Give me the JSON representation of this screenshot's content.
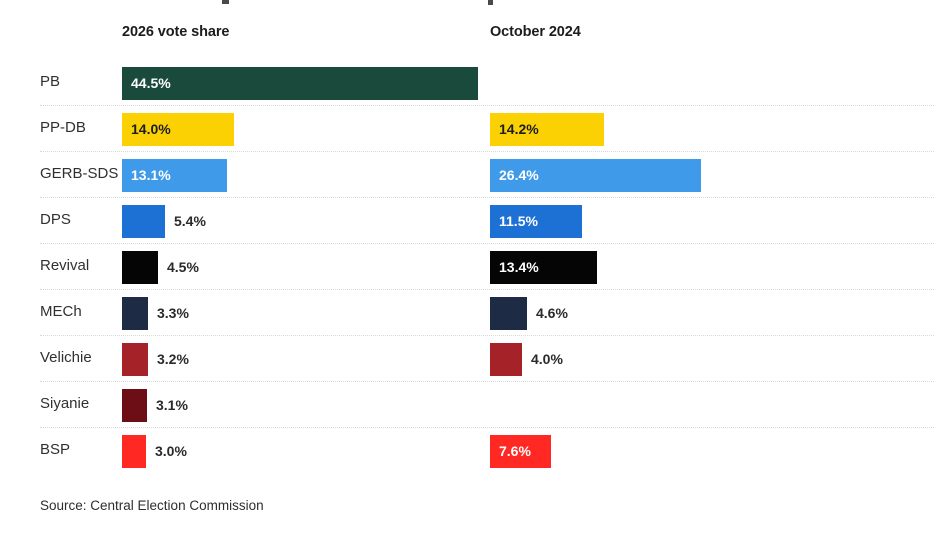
{
  "headers": {
    "col2026": "2026 vote share",
    "col2024": "October 2024"
  },
  "source": "Source: Central Election Commission",
  "chart_data": {
    "type": "bar",
    "orientation": "horizontal",
    "title": "",
    "xlabel": "",
    "ylabel": "",
    "xlim": [
      0,
      50
    ],
    "grid": false,
    "legend_position": "column-headers-top",
    "categories": [
      "PB",
      "PP-DB",
      "GERB-SDS",
      "DPS",
      "Revival",
      "MECh",
      "Velichie",
      "Siyanie",
      "BSP"
    ],
    "series": [
      {
        "name": "2026 vote share",
        "values": [
          44.5,
          14.0,
          13.1,
          5.4,
          4.5,
          3.3,
          3.2,
          3.1,
          3.0
        ],
        "labels": [
          "44.5%",
          "14.0%",
          "13.1%",
          "5.4%",
          "4.5%",
          "3.3%",
          "3.2%",
          "3.1%",
          "3.0%"
        ]
      },
      {
        "name": "October 2024",
        "values": [
          null,
          14.2,
          26.4,
          11.5,
          13.4,
          4.6,
          4.0,
          null,
          7.6
        ],
        "labels": [
          null,
          "14.2%",
          "26.4%",
          "11.5%",
          "13.4%",
          "4.6%",
          "4.0%",
          null,
          "7.6%"
        ]
      }
    ],
    "bar_colors": [
      "#1a4a3b",
      "#fbd104",
      "#3f9bea",
      "#1e71d4",
      "#050505",
      "#1d2c44",
      "#a52228",
      "#6d0d16",
      "#ff2822"
    ],
    "dark_label_color": "#1d1d1d",
    "light_label_color": "#ffffff",
    "yellow_bar_color": "#fbd104",
    "source": "Source: Central Election Commission"
  }
}
